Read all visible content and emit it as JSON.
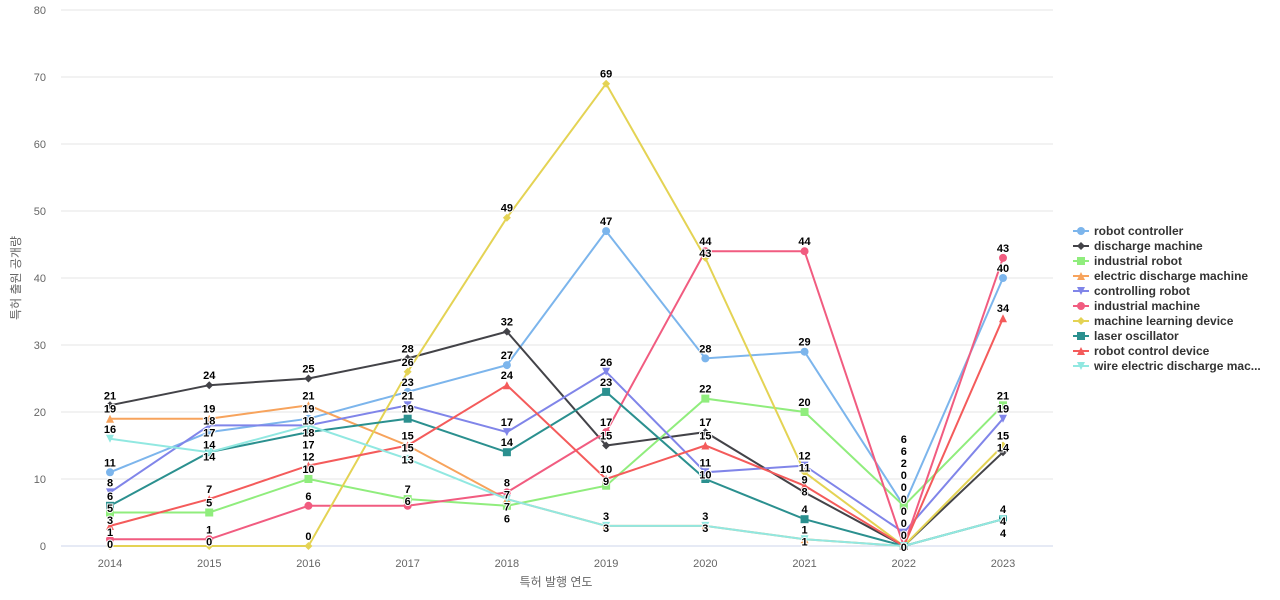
{
  "chart_data": {
    "type": "line",
    "title": "",
    "xlabel": "특허 발행 연도",
    "ylabel": "특허 출원 공개량",
    "x": [
      "2014",
      "2015",
      "2016",
      "2017",
      "2018",
      "2019",
      "2020",
      "2021",
      "2022",
      "2023"
    ],
    "ylim": [
      0,
      80
    ],
    "yticks": [
      0,
      10,
      20,
      30,
      40,
      50,
      60,
      70,
      80
    ],
    "grid": true,
    "legend": "right",
    "series": [
      {
        "name": "robot controller",
        "color": "#7cb5ec",
        "marker": "circle",
        "values": [
          11,
          17,
          19,
          23,
          27,
          47,
          28,
          29,
          6,
          40
        ]
      },
      {
        "name": "discharge machine",
        "color": "#434348",
        "marker": "diamond",
        "values": [
          21,
          24,
          25,
          28,
          32,
          15,
          17,
          8,
          0,
          14
        ]
      },
      {
        "name": "industrial robot",
        "color": "#90ed7d",
        "marker": "square",
        "values": [
          5,
          5,
          10,
          7,
          6,
          9,
          22,
          20,
          6,
          21
        ]
      },
      {
        "name": "electric discharge machine",
        "color": "#f7a35c",
        "marker": "triangle",
        "values": [
          19,
          19,
          21,
          15,
          7,
          3,
          3,
          1,
          0,
          4
        ]
      },
      {
        "name": "controlling robot",
        "color": "#8085e9",
        "marker": "triangle-down",
        "values": [
          8,
          18,
          18,
          21,
          17,
          26,
          11,
          12,
          2,
          19
        ]
      },
      {
        "name": "industrial machine",
        "color": "#f15c80",
        "marker": "circle",
        "values": [
          1,
          1,
          6,
          6,
          8,
          17,
          44,
          44,
          0,
          43
        ]
      },
      {
        "name": "machine learning device",
        "color": "#e4d354",
        "marker": "diamond",
        "values": [
          0,
          0,
          0,
          26,
          49,
          69,
          43,
          11,
          0,
          15
        ]
      },
      {
        "name": "laser oscillator",
        "color": "#2b908f",
        "marker": "square",
        "values": [
          6,
          14,
          17,
          19,
          14,
          23,
          10,
          4,
          0,
          4
        ]
      },
      {
        "name": "robot control device",
        "color": "#f45b5b",
        "marker": "triangle",
        "values": [
          3,
          7,
          12,
          15,
          24,
          10,
          15,
          9,
          0,
          34
        ]
      },
      {
        "name": "wire electric discharge mac...",
        "color": "#91e8e1",
        "marker": "triangle-down",
        "values": [
          16,
          14,
          18,
          13,
          7,
          3,
          3,
          1,
          0,
          4
        ]
      }
    ]
  }
}
